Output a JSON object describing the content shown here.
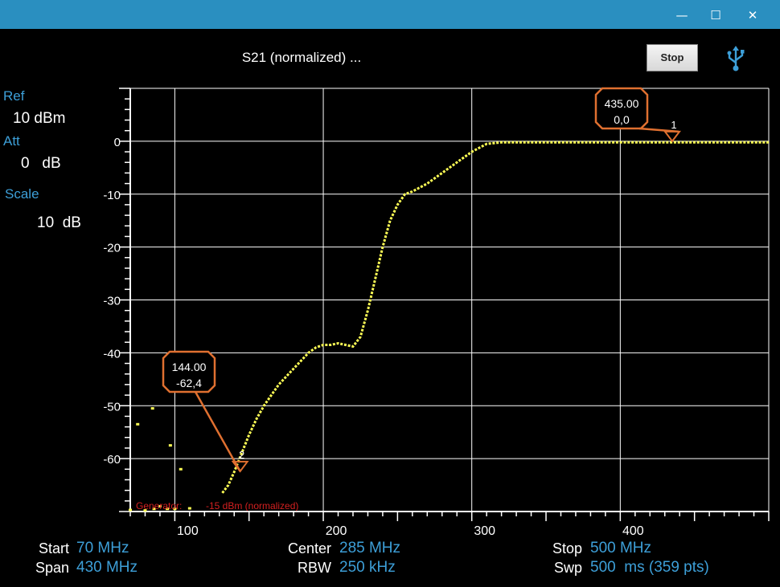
{
  "window": {
    "minimize_glyph": "—",
    "maximize_glyph": "☐",
    "close_glyph": "✕"
  },
  "header": {
    "title": "S21 (normalized) ...",
    "stop_label": "Stop",
    "usb_icon": "usb-icon"
  },
  "left_panel": {
    "ref_label": "Ref",
    "ref_value": "10  dBm",
    "att_label": "Att",
    "att_value": "0   dB",
    "scale_label": "Scale",
    "scale_value": "10  dB"
  },
  "footer": {
    "start_label": "Start",
    "start_value": "70 MHz",
    "span_label": "Span",
    "span_value": "430 MHz",
    "center_label": "Center",
    "center_value": "285 MHz",
    "rbw_label": "RBW",
    "rbw_value": "250 kHz",
    "stop_label": "Stop",
    "stop_value": "500 MHz",
    "swp_label": "Swp",
    "swp_value": "500  ms (359 pts)"
  },
  "colors": {
    "trace": "#ffff55",
    "grid": "#ffffff",
    "marker": "#e07030",
    "accent_blue": "#3d9fd8",
    "generator_text": "#d42020",
    "titlebar": "#2a8fc0"
  },
  "chart_data": {
    "type": "line",
    "xlim": [
      70,
      500
    ],
    "ylim": [
      -70,
      10
    ],
    "x_ticks": [
      100,
      200,
      300,
      400
    ],
    "x_tick_labels": [
      "100",
      "200",
      "300",
      "400"
    ],
    "y_ticks": [
      0,
      -10,
      -20,
      -30,
      -40,
      -50,
      -60
    ],
    "y_tick_labels": [
      "0",
      "-10",
      "-20",
      "-30",
      "-40",
      "-50",
      "-60"
    ],
    "grid": true,
    "generator_label": "Generator:",
    "generator_value": "-15 dBm (normalized)",
    "series": [
      {
        "x": [
          132,
          136,
          140,
          145,
          150,
          155,
          160,
          165,
          170,
          175,
          180,
          185,
          190,
          195,
          200,
          205,
          210,
          215,
          220,
          225,
          230,
          235,
          240,
          245,
          250,
          255,
          260,
          270,
          280,
          290,
          300,
          310,
          320,
          330,
          340,
          360,
          380,
          400,
          420,
          440,
          460,
          480,
          500
        ],
        "y": [
          -66.5,
          -65,
          -62.5,
          -59,
          -55.5,
          -52.5,
          -50,
          -48,
          -46,
          -44.5,
          -43,
          -41.5,
          -40,
          -39,
          -38.5,
          -38.5,
          -38.2,
          -38.5,
          -38.8,
          -37,
          -32,
          -26,
          -20,
          -15,
          -12,
          -10,
          -9.5,
          -8,
          -6,
          -4,
          -2,
          -0.5,
          -0.2,
          -0.2,
          -0.2,
          -0.2,
          -0.2,
          -0.2,
          -0.2,
          -0.2,
          -0.2,
          -0.2,
          -0.2
        ]
      }
    ],
    "scattered_points": {
      "x": [
        75,
        85,
        97,
        104,
        90,
        95,
        100,
        70,
        80,
        86,
        110
      ],
      "y": [
        -53.5,
        -50.5,
        -57.5,
        -62,
        -69,
        -69.5,
        -69.5,
        -69.7,
        -69.8,
        -69.5,
        -69.4
      ]
    },
    "markers": [
      {
        "id": "1",
        "x": 435,
        "y": 0,
        "label_freq": "435.00",
        "label_level": "0,0"
      },
      {
        "id": "2",
        "x": 144,
        "y": -62.4,
        "label_freq": "144.00",
        "label_level": "-62,4"
      }
    ]
  }
}
